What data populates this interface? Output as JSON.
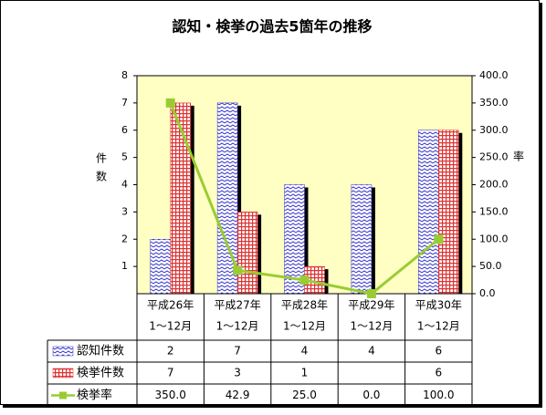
{
  "chart_data": {
    "type": "bar-line",
    "title": "認知・検挙の過去5箇年の推移",
    "y_label": [
      "件",
      "数"
    ],
    "y2_label": "率",
    "categories": [
      [
        "平成26年",
        "1〜12月"
      ],
      [
        "平成27年",
        "1〜12月"
      ],
      [
        "平成28年",
        "1〜12月"
      ],
      [
        "平成29年",
        "1〜12月"
      ],
      [
        "平成30年",
        "1〜12月"
      ]
    ],
    "series": [
      {
        "name": "認知件数",
        "type": "bar",
        "color": "#3333cc",
        "values": [
          2,
          7,
          4,
          4,
          6
        ]
      },
      {
        "name": "検挙件数",
        "type": "bar",
        "color": "#dd3333",
        "values": [
          7,
          3,
          1,
          null,
          6
        ]
      },
      {
        "name": "検挙率",
        "type": "line",
        "axis": "y2",
        "color": "#99cc33",
        "values": [
          350,
          42.9,
          25,
          0,
          100
        ],
        "value_labels": [
          "350.0",
          "42.9",
          "25.0",
          "0.0",
          "100.0"
        ]
      }
    ],
    "ylim": [
      0,
      8
    ],
    "yticks": [
      1,
      2,
      3,
      4,
      5,
      6,
      7,
      8
    ],
    "y2lim": [
      0,
      400
    ],
    "y2ticks": [
      {
        "value": 0,
        "label": "0.0"
      },
      {
        "value": 50,
        "label": "50.0"
      },
      {
        "value": 100,
        "label": "100.0"
      },
      {
        "value": 150,
        "label": "150.0"
      },
      {
        "value": 200,
        "label": "200.0"
      },
      {
        "value": 250,
        "label": "250.0"
      },
      {
        "value": 300,
        "label": "300.0"
      },
      {
        "value": 350,
        "label": "350.0"
      },
      {
        "value": 400,
        "label": "400.0"
      }
    ],
    "plot_background": "#ffffc4"
  }
}
